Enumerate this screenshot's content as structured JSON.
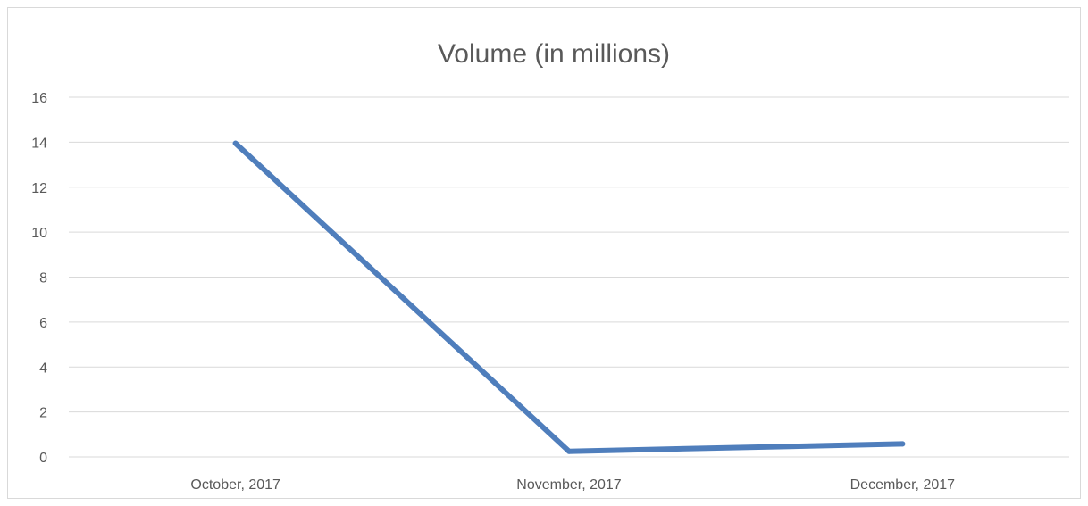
{
  "chart_data": {
    "type": "line",
    "title": "Volume (in millions)",
    "xlabel": "",
    "ylabel": "",
    "categories": [
      "October, 2017",
      "November, 2017",
      "December, 2017"
    ],
    "series": [
      {
        "values": [
          13.95,
          0.25,
          0.58
        ],
        "color": "#4f7ebc"
      }
    ],
    "ylim": [
      0,
      16
    ],
    "yticks": [
      0,
      2,
      4,
      6,
      8,
      10,
      12,
      14,
      16
    ],
    "grid": true,
    "legend": "none"
  }
}
